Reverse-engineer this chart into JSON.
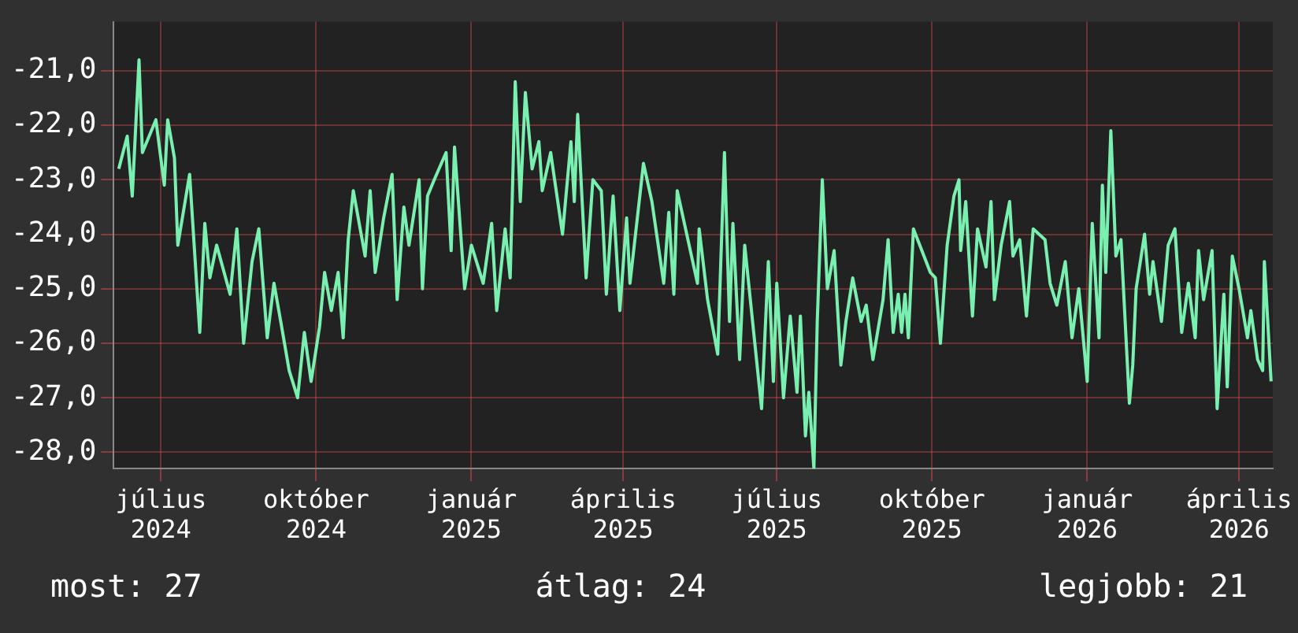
{
  "chart_data": {
    "type": "line",
    "x": [
      "2024-06-06",
      "2024-06-11",
      "2024-06-14",
      "2024-06-18",
      "2024-06-20",
      "2024-06-28",
      "2024-07-03",
      "2024-07-05",
      "2024-07-09",
      "2024-07-11",
      "2024-07-18",
      "2024-07-24",
      "2024-07-27",
      "2024-07-30",
      "2024-08-03",
      "2024-08-11",
      "2024-08-15",
      "2024-08-19",
      "2024-08-24",
      "2024-08-28",
      "2024-09-02",
      "2024-09-06",
      "2024-09-10",
      "2024-09-15",
      "2024-09-20",
      "2024-09-24",
      "2024-09-28",
      "2024-10-03",
      "2024-10-06",
      "2024-10-10",
      "2024-10-14",
      "2024-10-17",
      "2024-10-20",
      "2024-10-23",
      "2024-10-30",
      "2024-11-02",
      "2024-11-05",
      "2024-11-10",
      "2024-11-15",
      "2024-11-18",
      "2024-11-22",
      "2024-11-25",
      "2024-12-01",
      "2024-12-03",
      "2024-12-06",
      "2024-12-10",
      "2024-12-17",
      "2024-12-20",
      "2024-12-22",
      "2024-12-28",
      "2025-01-01",
      "2025-01-08",
      "2025-01-13",
      "2025-01-16",
      "2025-01-21",
      "2025-01-24",
      "2025-01-27",
      "2025-01-30",
      "2025-02-02",
      "2025-02-06",
      "2025-02-10",
      "2025-02-12",
      "2025-02-17",
      "2025-02-24",
      "2025-03-01",
      "2025-03-03",
      "2025-03-05",
      "2025-03-10",
      "2025-03-14",
      "2025-03-19",
      "2025-03-22",
      "2025-03-26",
      "2025-03-30",
      "2025-04-03",
      "2025-04-05",
      "2025-04-13",
      "2025-04-18",
      "2025-04-25",
      "2025-04-28",
      "2025-05-01",
      "2025-05-03",
      "2025-05-15",
      "2025-05-16",
      "2025-05-21",
      "2025-05-27",
      "2025-05-31",
      "2025-06-03",
      "2025-06-05",
      "2025-06-09",
      "2025-06-12",
      "2025-06-18",
      "2025-06-22",
      "2025-06-26",
      "2025-06-29",
      "2025-07-01",
      "2025-07-05",
      "2025-07-09",
      "2025-07-13",
      "2025-07-15",
      "2025-07-18",
      "2025-07-20",
      "2025-07-23",
      "2025-07-25",
      "2025-07-28",
      "2025-07-31",
      "2025-08-04",
      "2025-08-08",
      "2025-08-11",
      "2025-08-15",
      "2025-08-20",
      "2025-08-23",
      "2025-08-27",
      "2025-09-02",
      "2025-09-05",
      "2025-09-08",
      "2025-09-11",
      "2025-09-13",
      "2025-09-15",
      "2025-09-17",
      "2025-09-20",
      "2025-09-25",
      "2025-09-30",
      "2025-10-03",
      "2025-10-06",
      "2025-10-10",
      "2025-10-14",
      "2025-10-17",
      "2025-10-18",
      "2025-10-21",
      "2025-10-25",
      "2025-10-28",
      "2025-11-02",
      "2025-11-05",
      "2025-11-07",
      "2025-11-11",
      "2025-11-16",
      "2025-11-18",
      "2025-11-22",
      "2025-11-26",
      "2025-11-30",
      "2025-12-07",
      "2025-12-10",
      "2025-12-14",
      "2025-12-19",
      "2025-12-23",
      "2025-12-27",
      "2026-01-01",
      "2026-01-04",
      "2026-01-08",
      "2026-01-10",
      "2026-01-12",
      "2026-01-15",
      "2026-01-18",
      "2026-01-21",
      "2026-01-26",
      "2026-01-28",
      "2026-01-30",
      "2026-02-04",
      "2026-02-07",
      "2026-02-09",
      "2026-02-14",
      "2026-02-18",
      "2026-02-22",
      "2026-02-26",
      "2026-03-02",
      "2026-03-06",
      "2026-03-08",
      "2026-03-11",
      "2026-03-16",
      "2026-03-19",
      "2026-03-23",
      "2026-03-25",
      "2026-03-28",
      "2026-04-01",
      "2026-04-06",
      "2026-04-08",
      "2026-04-12",
      "2026-04-15",
      "2026-04-16",
      "2026-04-20"
    ],
    "series": [
      {
        "color": "#7af0b0",
        "values": [
          -22.8,
          -22.2,
          -23.3,
          -20.8,
          -22.5,
          -21.9,
          -23.1,
          -21.9,
          -22.6,
          -24.2,
          -22.9,
          -25.8,
          -23.8,
          -24.8,
          -24.2,
          -25.1,
          -23.9,
          -26.0,
          -24.5,
          -23.9,
          -25.9,
          -24.9,
          -25.6,
          -26.5,
          -27.0,
          -25.8,
          -26.7,
          -25.7,
          -24.7,
          -25.4,
          -24.7,
          -25.9,
          -24.1,
          -23.2,
          -24.4,
          -23.2,
          -24.7,
          -23.7,
          -22.9,
          -25.2,
          -23.5,
          -24.2,
          -23.0,
          -25.0,
          -23.3,
          -23.0,
          -22.5,
          -24.3,
          -22.4,
          -25.0,
          -24.2,
          -24.9,
          -23.8,
          -25.4,
          -23.9,
          -24.8,
          -21.2,
          -23.4,
          -21.4,
          -22.8,
          -22.3,
          -23.2,
          -22.5,
          -24.0,
          -22.3,
          -23.4,
          -21.8,
          -24.8,
          -23.0,
          -23.2,
          -25.1,
          -23.3,
          -25.4,
          -23.7,
          -24.9,
          -22.7,
          -23.4,
          -24.9,
          -23.6,
          -25.1,
          -23.2,
          -24.9,
          -23.9,
          -25.2,
          -26.2,
          -22.5,
          -25.6,
          -23.8,
          -26.3,
          -24.2,
          -26.0,
          -27.2,
          -24.5,
          -26.7,
          -24.9,
          -27.0,
          -25.5,
          -26.9,
          -25.5,
          -27.7,
          -26.9,
          -28.3,
          -25.6,
          -23.0,
          -25.0,
          -24.3,
          -26.4,
          -25.6,
          -24.8,
          -25.6,
          -25.3,
          -26.3,
          -25.2,
          -24.1,
          -25.8,
          -25.1,
          -25.8,
          -25.1,
          -25.9,
          -23.9,
          -24.3,
          -24.7,
          -24.8,
          -26.0,
          -24.2,
          -23.3,
          -23.0,
          -24.3,
          -23.4,
          -25.5,
          -23.9,
          -24.6,
          -23.4,
          -25.2,
          -24.2,
          -23.4,
          -24.4,
          -24.1,
          -25.5,
          -23.9,
          -24.1,
          -24.9,
          -25.3,
          -24.5,
          -25.9,
          -25.0,
          -26.7,
          -23.8,
          -25.9,
          -23.1,
          -24.7,
          -22.1,
          -24.4,
          -24.1,
          -27.1,
          -26.4,
          -25.0,
          -24.0,
          -25.1,
          -24.5,
          -25.6,
          -24.2,
          -23.9,
          -25.8,
          -24.9,
          -25.9,
          -24.3,
          -25.2,
          -24.3,
          -27.2,
          -25.1,
          -26.8,
          -24.4,
          -25.0,
          -25.9,
          -25.4,
          -26.3,
          -26.5,
          -24.5,
          -26.7
        ]
      }
    ],
    "xlim": [
      "2024-06-03",
      "2026-04-21"
    ],
    "xticks": [
      {
        "value": "2024-07-01",
        "label": "július\n2024"
      },
      {
        "value": "2024-10-01",
        "label": "október\n2024"
      },
      {
        "value": "2025-01-01",
        "label": "január\n2025"
      },
      {
        "value": "2025-04-01",
        "label": "április\n2025"
      },
      {
        "value": "2025-07-01",
        "label": "július\n2025"
      },
      {
        "value": "2025-10-01",
        "label": "október\n2025"
      },
      {
        "value": "2026-01-01",
        "label": "január\n2026"
      },
      {
        "value": "2026-04-01",
        "label": "április\n2026"
      }
    ],
    "ylim": [
      -28.3,
      -20.1
    ],
    "yticks": [
      {
        "value": -28,
        "label": "-28,0"
      },
      {
        "value": -27,
        "label": "-27,0"
      },
      {
        "value": -26,
        "label": "-26,0"
      },
      {
        "value": -25,
        "label": "-25,0"
      },
      {
        "value": -24,
        "label": "-24,0"
      },
      {
        "value": -23,
        "label": "-23,0"
      },
      {
        "value": -22,
        "label": "-22,0"
      },
      {
        "value": -21,
        "label": "-21,0"
      }
    ],
    "grid": true,
    "legend": false,
    "marker": "none",
    "line_style": "solid",
    "annotations": [
      "most: 27",
      "átlag: 24",
      "legjobb: 21"
    ]
  }
}
